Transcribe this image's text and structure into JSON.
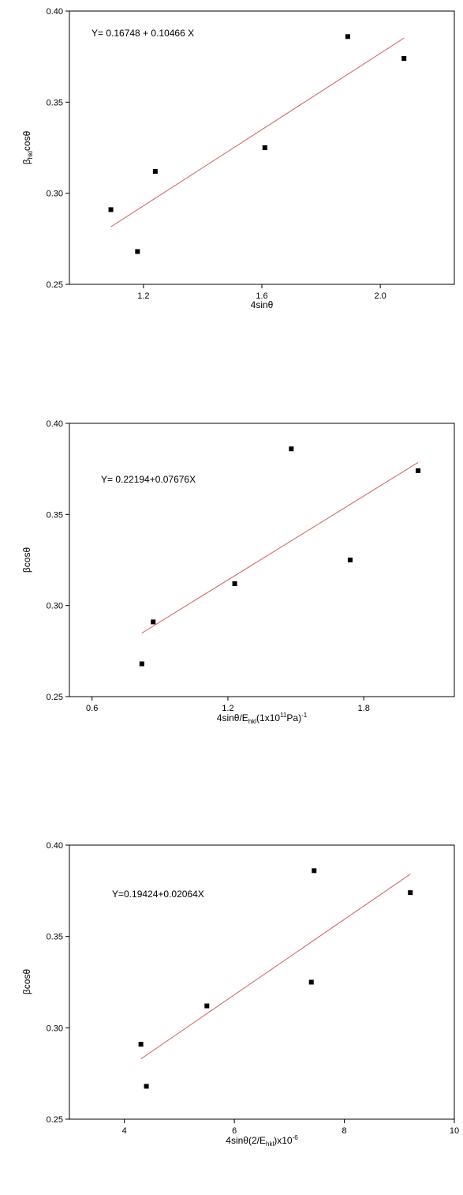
{
  "chart_data": [
    {
      "type": "scatter",
      "equation": "Y= 0.16748 + 0.10466 X",
      "xlabel": "4sinθ",
      "ylabel_main": "β",
      "ylabel_sub": "hkl",
      "ylabel_rest": "cosθ",
      "xlim": [
        0.95,
        2.25
      ],
      "ylim": [
        0.25,
        0.4
      ],
      "xticks": [
        1.2,
        1.6,
        2.0
      ],
      "xtick_labels": [
        "1.2",
        "1.6",
        "2.0"
      ],
      "yticks": [
        0.25,
        0.3,
        0.35,
        0.4
      ],
      "ytick_labels": [
        "0.25",
        "0.30",
        "0.35",
        "0.40"
      ],
      "points": [
        {
          "x": 1.09,
          "y": 0.291
        },
        {
          "x": 1.18,
          "y": 0.268
        },
        {
          "x": 1.24,
          "y": 0.312
        },
        {
          "x": 1.61,
          "y": 0.325
        },
        {
          "x": 1.89,
          "y": 0.386
        },
        {
          "x": 2.08,
          "y": 0.374
        }
      ],
      "fit": {
        "intercept": 0.16748,
        "slope": 0.10466,
        "x_from": 1.09,
        "x_to": 2.08
      }
    },
    {
      "type": "scatter",
      "equation": "Y= 0.22194+0.07676X",
      "xlabel_main": "4sinθ/E",
      "xlabel_sub": "hkl",
      "xlabel_mid": "(1x10",
      "xlabel_sup": "11",
      "xlabel_rest": "Pa)",
      "xlabel_sup2": "-1",
      "ylabel": "βcosθ",
      "xlim": [
        0.5,
        2.2
      ],
      "ylim": [
        0.25,
        0.4
      ],
      "xticks": [
        0.6,
        1.2,
        1.8
      ],
      "xtick_labels": [
        "0.6",
        "1.2",
        "1.8"
      ],
      "yticks": [
        0.25,
        0.3,
        0.35,
        0.4
      ],
      "ytick_labels": [
        "0.25",
        "0.30",
        "0.35",
        "0.40"
      ],
      "points": [
        {
          "x": 0.82,
          "y": 0.268
        },
        {
          "x": 0.87,
          "y": 0.291
        },
        {
          "x": 1.23,
          "y": 0.312
        },
        {
          "x": 1.48,
          "y": 0.386
        },
        {
          "x": 1.74,
          "y": 0.325
        },
        {
          "x": 2.04,
          "y": 0.374
        }
      ],
      "fit": {
        "intercept": 0.22194,
        "slope": 0.07676,
        "x_from": 0.82,
        "x_to": 2.04
      }
    },
    {
      "type": "scatter",
      "equation": "Y=0.19424+0.02064X",
      "xlabel_main": "4sinθ(2/E",
      "xlabel_sub": "hkl",
      "xlabel_mid": ")x10",
      "xlabel_sup": "-6",
      "ylabel": "βcosθ",
      "xlim": [
        3.0,
        10.0
      ],
      "ylim": [
        0.25,
        0.4
      ],
      "xticks": [
        4,
        6,
        8,
        10
      ],
      "xtick_labels": [
        "4",
        "6",
        "8",
        "10"
      ],
      "yticks": [
        0.25,
        0.3,
        0.35,
        0.4
      ],
      "ytick_labels": [
        "0.25",
        "0.30",
        "0.35",
        "0.40"
      ],
      "points": [
        {
          "x": 4.3,
          "y": 0.291
        },
        {
          "x": 4.4,
          "y": 0.268
        },
        {
          "x": 5.5,
          "y": 0.312
        },
        {
          "x": 7.4,
          "y": 0.325
        },
        {
          "x": 7.45,
          "y": 0.386
        },
        {
          "x": 9.2,
          "y": 0.374
        }
      ],
      "fit": {
        "intercept": 0.19424,
        "slope": 0.02064,
        "x_from": 4.3,
        "x_to": 9.2
      }
    }
  ]
}
